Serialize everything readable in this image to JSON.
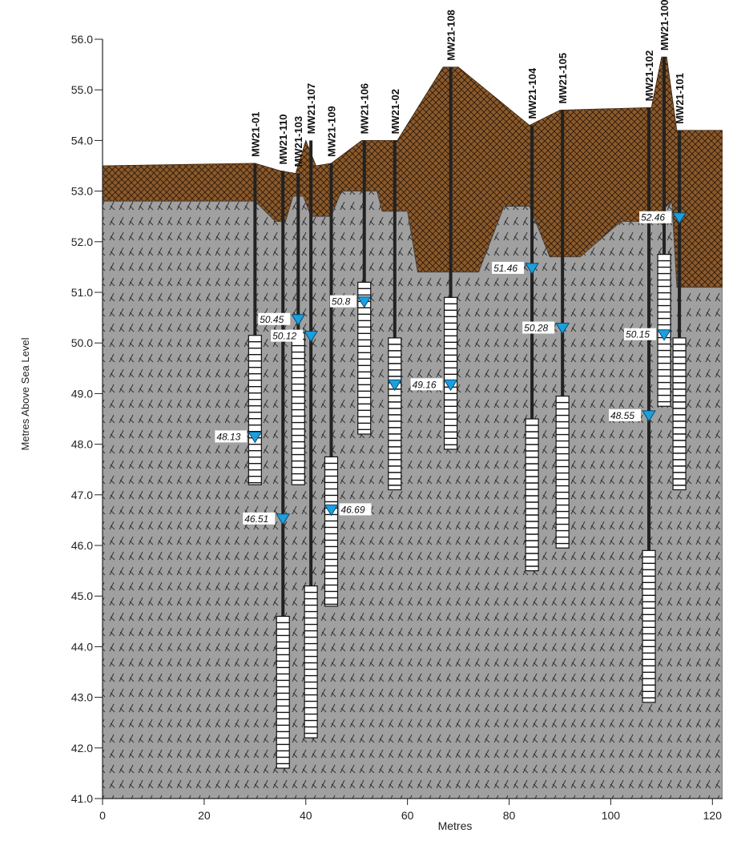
{
  "chart_data": {
    "type": "cross-section",
    "title": "",
    "xlabel": "Metres",
    "ylabel": "Metres Above Sea Level",
    "xlim": [
      0,
      122
    ],
    "ylim": [
      41,
      56
    ],
    "x_ticks": [
      0,
      20,
      40,
      60,
      80,
      100,
      120
    ],
    "y_ticks": [
      41.0,
      42.0,
      43.0,
      44.0,
      45.0,
      46.0,
      47.0,
      48.0,
      49.0,
      50.0,
      51.0,
      52.0,
      53.0,
      54.0,
      55.0,
      56.0
    ],
    "colors": {
      "fill_layer": "#8b5a2b",
      "bedrock": "#a0a0a0",
      "water_marker": "#1aa0e0",
      "screen": "#ffffff",
      "well_line": "#222222"
    },
    "ground_surface": [
      [
        0,
        53.5
      ],
      [
        30,
        53.55
      ],
      [
        35,
        53.4
      ],
      [
        38,
        53.35
      ],
      [
        40,
        54.0
      ],
      [
        42,
        53.5
      ],
      [
        45,
        53.55
      ],
      [
        51,
        54.0
      ],
      [
        58,
        54.0
      ],
      [
        67,
        55.45
      ],
      [
        70,
        55.45
      ],
      [
        84,
        54.3
      ],
      [
        90,
        54.6
      ],
      [
        108,
        54.65
      ],
      [
        110,
        55.65
      ],
      [
        111,
        55.65
      ],
      [
        113,
        54.2
      ],
      [
        122,
        54.2
      ]
    ],
    "bedrock_surface": [
      [
        0,
        52.8
      ],
      [
        30,
        52.8
      ],
      [
        34,
        52.4
      ],
      [
        36,
        52.4
      ],
      [
        37.5,
        52.9
      ],
      [
        39.5,
        52.9
      ],
      [
        41,
        52.5
      ],
      [
        45,
        52.5
      ],
      [
        47,
        53.0
      ],
      [
        54,
        53.0
      ],
      [
        55,
        52.6
      ],
      [
        60,
        52.6
      ],
      [
        62,
        51.4
      ],
      [
        74,
        51.4
      ],
      [
        79,
        52.7
      ],
      [
        84,
        52.7
      ],
      [
        88,
        51.7
      ],
      [
        94,
        51.7
      ],
      [
        102,
        52.4
      ],
      [
        108,
        52.4
      ],
      [
        112,
        52.8
      ],
      [
        113,
        51.1
      ],
      [
        122,
        51.1
      ]
    ],
    "wells": [
      {
        "name": "MW21-01",
        "x": 30,
        "top": 53.55,
        "bottom": 47.2,
        "screen_top": 50.15,
        "screen_bottom": 47.2,
        "water_level": 48.13,
        "wl_label": "48.13",
        "label_side": "left"
      },
      {
        "name": "MW21-110",
        "x": 35.5,
        "top": 53.4,
        "bottom": 41.6,
        "screen_top": 44.6,
        "screen_bottom": 41.6,
        "water_level": 46.51,
        "wl_label": "46.51",
        "label_side": "left"
      },
      {
        "name": "MW21-103",
        "x": 38.5,
        "top": 53.35,
        "bottom": 47.2,
        "screen_top": 50.2,
        "screen_bottom": 47.2,
        "water_level": 50.45,
        "wl_label": "50.45",
        "label_side": "left"
      },
      {
        "name": "MW21-107",
        "x": 41,
        "top": 54.0,
        "bottom": 42.2,
        "screen_top": 45.2,
        "screen_bottom": 42.2,
        "water_level": 50.12,
        "wl_label": "50.12",
        "label_side": "left"
      },
      {
        "name": "MW21-109",
        "x": 45,
        "top": 53.55,
        "bottom": 44.8,
        "screen_top": 47.75,
        "screen_bottom": 44.8,
        "water_level": 46.69,
        "wl_label": "46.69",
        "label_side": "right"
      },
      {
        "name": "MW21-106",
        "x": 51.5,
        "top": 54.0,
        "bottom": 48.2,
        "screen_top": 51.2,
        "screen_bottom": 48.2,
        "water_level": 50.8,
        "wl_label": "50.8",
        "label_side": "left"
      },
      {
        "name": "MW21-02",
        "x": 57.5,
        "top": 54.0,
        "bottom": 47.1,
        "screen_top": 50.1,
        "screen_bottom": 47.1,
        "water_level": 49.16,
        "wl_label": "49.16",
        "label_side": "none"
      },
      {
        "name": "MW21-108",
        "x": 68.5,
        "top": 55.45,
        "bottom": 47.9,
        "screen_top": 50.9,
        "screen_bottom": 47.9,
        "water_level": 49.16,
        "wl_label": "49.16",
        "label_side": "left"
      },
      {
        "name": "MW21-104",
        "x": 84.5,
        "top": 54.3,
        "bottom": 45.5,
        "screen_top": 48.5,
        "screen_bottom": 45.5,
        "water_level": 51.46,
        "wl_label": "51.46",
        "label_side": "left"
      },
      {
        "name": "MW21-105",
        "x": 90.5,
        "top": 54.6,
        "bottom": 45.95,
        "screen_top": 48.95,
        "screen_bottom": 45.95,
        "water_level": 50.28,
        "wl_label": "50.28",
        "label_side": "left"
      },
      {
        "name": "MW21-102",
        "x": 107.5,
        "top": 54.65,
        "bottom": 42.9,
        "screen_top": 45.9,
        "screen_bottom": 42.9,
        "water_level": 48.55,
        "wl_label": "48.55",
        "label_side": "left"
      },
      {
        "name": "MW21-100",
        "x": 110.5,
        "top": 55.65,
        "bottom": 48.75,
        "screen_top": 51.75,
        "screen_bottom": 48.75,
        "water_level": 50.15,
        "wl_label": "50.15",
        "label_side": "left"
      },
      {
        "name": "MW21-101",
        "x": 113.5,
        "top": 54.2,
        "bottom": 47.1,
        "screen_top": 50.1,
        "screen_bottom": 47.1,
        "water_level": 52.46,
        "wl_label": "52.46",
        "label_side": "left"
      }
    ]
  }
}
